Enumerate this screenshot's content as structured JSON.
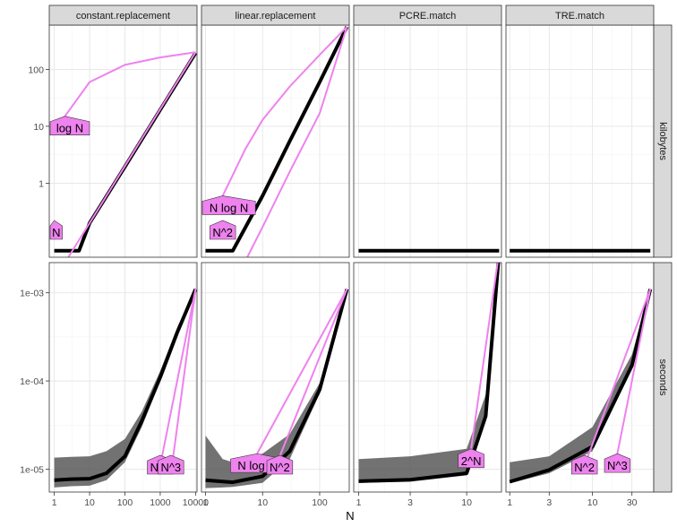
{
  "chart_data": {
    "type": "line",
    "title": "",
    "xlabel": "N",
    "ylabel": "",
    "x_scale": "log",
    "y_scale": "log",
    "colors": {
      "empirical": "#000000",
      "range_band": "#595959",
      "reference": "#ee82ee",
      "strip_fill": "#d9d9d9"
    },
    "columns": [
      "constant.replacement",
      "linear.replacement",
      "PCRE.match",
      "TRE.match"
    ],
    "rows": [
      "kilobytes",
      "seconds"
    ],
    "row_ylim": {
      "kilobytes": [
        0.05,
        600
      ],
      "seconds": [
        5.5e-06,
        0.0022
      ]
    },
    "row_yticks": {
      "kilobytes": {
        "values": [
          1,
          10,
          100
        ],
        "labels": [
          "1",
          "10",
          "100"
        ]
      },
      "seconds": {
        "values": [
          1e-05,
          0.0001,
          0.001
        ],
        "labels": [
          "1e-05",
          "1e-04",
          "1e-03"
        ]
      }
    },
    "col_x": {
      "constant.replacement": {
        "xlim": [
          0.72,
          11000
        ],
        "ticks": [
          1,
          10,
          100,
          1000,
          10000
        ],
        "tick_labels": [
          "1",
          "10",
          "100",
          "1000",
          "10000"
        ]
      },
      "linear.replacement": {
        "xlim": [
          0.85,
          330
        ],
        "ticks": [
          1,
          10,
          100
        ],
        "tick_labels": [
          "1",
          "10",
          "100"
        ]
      },
      "PCRE.match": {
        "xlim": [
          0.9,
          21
        ],
        "ticks": [
          1,
          3,
          10
        ],
        "tick_labels": [
          "1",
          "3",
          "10"
        ]
      },
      "TRE.match": {
        "xlim": [
          0.9,
          55
        ],
        "ticks": [
          1,
          3,
          10,
          30
        ],
        "tick_labels": [
          "1",
          "3",
          "10",
          "30"
        ]
      }
    },
    "panels": [
      {
        "row": "kilobytes",
        "column": "constant.replacement",
        "empirical": {
          "x": [
            1,
            5,
            10,
            100,
            1000,
            10000
          ],
          "y": [
            0.065,
            0.065,
            0.2,
            1.95,
            19.5,
            195
          ]
        },
        "references": [
          {
            "label": "log N",
            "x": [
              2,
              10,
              100,
              1000,
              10000
            ],
            "y": [
              15,
              60,
              120,
              162,
              200
            ]
          },
          {
            "label": "N",
            "x": [
              1,
              10,
              100,
              1000,
              10000
            ],
            "y": [
              0.02,
              0.2,
              2,
              20,
              200
            ]
          }
        ]
      },
      {
        "row": "kilobytes",
        "column": "linear.replacement",
        "empirical": {
          "x": [
            1,
            3,
            10,
            30,
            100,
            300
          ],
          "y": [
            0.065,
            0.065,
            0.6,
            5.5,
            60,
            560
          ]
        },
        "references": [
          {
            "label": "N log N",
            "x": [
              2,
              5,
              10,
              30,
              100,
              300
            ],
            "y": [
              0.6,
              4,
              13,
              50,
              180,
              560
            ]
          },
          {
            "label": "N^2",
            "x": [
              2,
              5,
              10,
              30,
              100,
              300
            ],
            "y": [
              0.007,
              0.043,
              0.17,
              1.6,
              17,
              560
            ]
          }
        ]
      },
      {
        "row": "kilobytes",
        "column": "PCRE.match",
        "empirical": {
          "x": [
            1,
            20
          ],
          "y": [
            0.065,
            0.065
          ]
        },
        "references": []
      },
      {
        "row": "kilobytes",
        "column": "TRE.match",
        "empirical": {
          "x": [
            1,
            50
          ],
          "y": [
            0.065,
            0.065
          ]
        },
        "references": []
      },
      {
        "row": "seconds",
        "column": "constant.replacement",
        "empirical": {
          "x": [
            1,
            3,
            10,
            30,
            100,
            300,
            1000,
            3000,
            10000
          ],
          "y": [
            7.5e-06,
            7.7e-06,
            7.8e-06,
            9e-06,
            1.4e-05,
            3.5e-05,
            0.00011,
            0.00035,
            0.0011
          ]
        },
        "band": {
          "x": [
            1,
            3,
            10,
            30,
            100,
            300,
            1000,
            3000,
            10000
          ],
          "lo": [
            6.2e-06,
            6.4e-06,
            6.5e-06,
            7.5e-06,
            1.2e-05,
            3e-05,
            0.0001,
            0.00033,
            0.00107
          ],
          "hi": [
            1.35e-05,
            1.38e-05,
            1.4e-05,
            1.6e-05,
            2.2e-05,
            4.5e-05,
            0.00013,
            0.0004,
            0.00115
          ]
        },
        "references": [
          {
            "label": "N^2",
            "x": [
              1000,
              10000
            ],
            "y": [
              1.1e-05,
              0.0011
            ]
          },
          {
            "label": "N^3",
            "x": [
              2000,
              10000
            ],
            "y": [
              8.8e-06,
              0.0011
            ]
          }
        ]
      },
      {
        "row": "seconds",
        "column": "linear.replacement",
        "empirical": {
          "x": [
            1,
            3,
            10,
            30,
            100,
            300
          ],
          "y": [
            7.5e-06,
            7.1e-06,
            8.3e-06,
            1.6e-05,
            8e-05,
            0.0011
          ]
        },
        "band": {
          "x": [
            1,
            2,
            3,
            10,
            30,
            100,
            300
          ],
          "lo": [
            6.1e-06,
            6.2e-06,
            6.3e-06,
            7e-06,
            1.3e-05,
            7.2e-05,
            0.00107
          ],
          "hi": [
            2.4e-05,
            1.3e-05,
            1.2e-05,
            1.5e-05,
            2.5e-05,
            9.5e-05,
            0.00115
          ]
        },
        "references": [
          {
            "label": "N log N",
            "x": [
              8,
              300
            ],
            "y": [
              1.5e-05,
              0.0011
            ]
          },
          {
            "label": "N^2",
            "x": [
              20,
              300
            ],
            "y": [
              1.4e-05,
              0.0011
            ]
          }
        ]
      },
      {
        "row": "seconds",
        "column": "PCRE.match",
        "empirical": {
          "x": [
            1,
            3,
            10,
            15,
            20
          ],
          "y": [
            7.3e-06,
            7.6e-06,
            9e-06,
            4e-05,
            0.0029
          ]
        },
        "band": {
          "x": [
            1,
            3,
            10,
            15,
            20
          ],
          "lo": [
            7e-06,
            7.2e-06,
            8.5e-06,
            3.5e-05,
            0.0028
          ],
          "hi": [
            1.3e-05,
            1.4e-05,
            1.7e-05,
            7e-05,
            0.003
          ]
        },
        "references": [
          {
            "label": "2^N",
            "x": [
              11,
              20
            ],
            "y": [
              1.7e-05,
              0.0029
            ]
          }
        ]
      },
      {
        "row": "seconds",
        "column": "TRE.match",
        "empirical": {
          "x": [
            1,
            3,
            10,
            30,
            50
          ],
          "y": [
            7.2e-06,
            9.8e-06,
            1.8e-05,
            0.00015,
            0.0011
          ]
        },
        "band": {
          "x": [
            1,
            3,
            10,
            30,
            50
          ],
          "lo": [
            6.9e-06,
            9e-06,
            1.6e-05,
            0.00014,
            0.00105
          ],
          "hi": [
            1.2e-05,
            1.4e-05,
            3e-05,
            0.0002,
            0.00115
          ]
        },
        "references": [
          {
            "label": "N^2",
            "x": [
              8,
              50
            ],
            "y": [
              1.1e-05,
              0.0011
            ]
          },
          {
            "label": "N^3",
            "x": [
              20,
              50
            ],
            "y": [
              1.5e-05,
              0.0011
            ]
          }
        ]
      }
    ]
  }
}
